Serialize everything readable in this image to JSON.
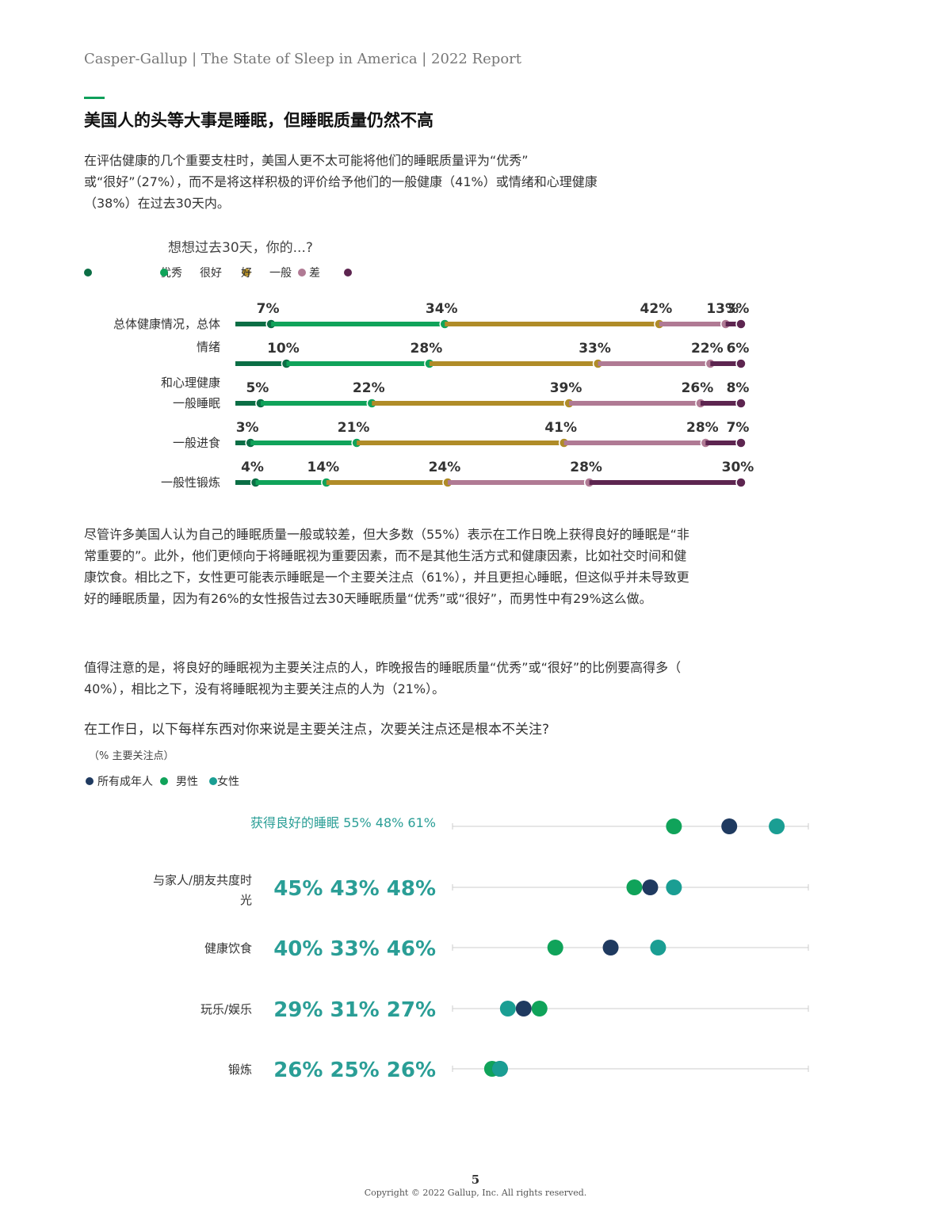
{
  "header": {
    "text": "Casper-Gallup | The State of Sleep in America  |  2022 Report"
  },
  "colors": {
    "accent": "#0e9f5a",
    "excellent": "#0b6e45",
    "very_good": "#10a35a",
    "good": "#b08c28",
    "fair": "#b07a94",
    "poor": "#5d2550",
    "all_adults": "#1f3a60",
    "men": "#10a35a",
    "women": "#1a9e93",
    "teal_text": "#2a9e96"
  },
  "section": {
    "title": "美国人的头等大事是睡眠，但睡眠质量仍然不高"
  },
  "intro": {
    "lines": [
      "在评估健康的几个重要支柱时，美国人更不太可能将他们的睡眠质量评为“优秀”",
      "或“很好”（27%），而不是将这样积极的评价给予他们的一般健康（41%）或情绪和心理健康",
      "（38%）在过去30天内。"
    ]
  },
  "chart1": {
    "question": "想想过去30天，你的...?",
    "legend": [
      "优秀",
      "很好",
      "好",
      "一般",
      "差"
    ]
  },
  "para2": {
    "lines": [
      "尽管许多美国人认为自己的睡眠质量一般或较差，但大多数（55%）表示在工作日晚上获得良好的睡眠是“非",
      "常重要的”。此外，他们更倾向于将睡眠视为重要因素，而不是其他生活方式和健康因素，比如社交时间和健",
      "康饮食。相比之下，女性更可能表示睡眠是一个主要关注点（61%），并且更担心睡眠，但这似乎并未导致更",
      "好的睡眠质量，因为有26%的女性报告过去30天睡眠质量“优秀”或“很好”，而男性中有29%这么做。"
    ]
  },
  "para3": {
    "lines": [
      "值得注意的是，将良好的睡眠视为主要关注点的人，昨晚报告的睡眠质量“优秀”或“很好”的比例要高得多（",
      "40%），相比之下，没有将睡眠视为主要关注点的人为（21%）。"
    ]
  },
  "chart2": {
    "question": "在工作日，以下每样东西对你来说是主要关注点，次要关注点还是根本不关注?",
    "subtitle": "（% 主要关注点）",
    "legend": [
      "所有成年人",
      "男性",
      "女性"
    ]
  },
  "chart_data": [
    {
      "type": "bar",
      "stacked": true,
      "orientation": "horizontal",
      "title": "想想过去30天，你的...?",
      "categories": [
        "总体健康情况，总体",
        "情绪\n和心理健康",
        "一般睡眠",
        "一般进食",
        "一般性锻炼"
      ],
      "series": [
        {
          "name": "优秀",
          "values": [
            7,
            10,
            5,
            3,
            4
          ]
        },
        {
          "name": "很好",
          "values": [
            34,
            28,
            22,
            21,
            14
          ]
        },
        {
          "name": "好",
          "values": [
            42,
            33,
            39,
            41,
            24
          ]
        },
        {
          "name": "一般",
          "values": [
            13,
            22,
            26,
            28,
            28
          ]
        },
        {
          "name": "差",
          "values": [
            3,
            6,
            8,
            7,
            30
          ]
        }
      ],
      "xlim": [
        0,
        100
      ]
    },
    {
      "type": "scatter",
      "subtype": "dot-plot",
      "title": "在工作日，以下每样东西对你来说是主要关注点，次要关注点还是根本不关注?",
      "subtitle": "（% 主要关注点）",
      "categories": [
        "获得良好的睡眠",
        "与家人/朋友共度时\n光",
        "健康饮食",
        "玩乐/娱乐",
        "锻炼"
      ],
      "series": [
        {
          "name": "所有成年人",
          "values": [
            55,
            45,
            40,
            29,
            26
          ]
        },
        {
          "name": "男性",
          "values": [
            48,
            43,
            33,
            31,
            25
          ]
        },
        {
          "name": "女性",
          "values": [
            61,
            48,
            46,
            27,
            26
          ]
        }
      ],
      "xlim": [
        20,
        65
      ]
    }
  ],
  "footer": {
    "page_number": "5",
    "copyright": "Copyright © 2022 Gallup, Inc. All rights reserved."
  }
}
